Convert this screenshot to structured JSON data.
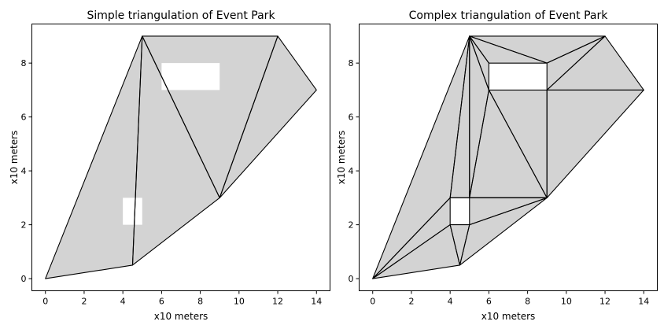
{
  "chart_data": [
    {
      "type": "triangulation",
      "title": "Simple triangulation of Event Park",
      "xlabel": "x10 meters",
      "ylabel": "x10 meters",
      "xlim": [
        -0.7,
        14.7
      ],
      "ylim": [
        -0.45,
        9.45
      ],
      "xticks": [
        0,
        2,
        4,
        6,
        8,
        10,
        12,
        14
      ],
      "yticks": [
        0,
        2,
        4,
        6,
        8
      ],
      "fill_color": "#d3d3d3",
      "edge_color": "#000000",
      "hole_color": "#ffffff",
      "points": [
        [
          0,
          0
        ],
        [
          4.5,
          0.5
        ],
        [
          9,
          3
        ],
        [
          14,
          7
        ],
        [
          12,
          9
        ],
        [
          5,
          9
        ]
      ],
      "triangles": [
        [
          0,
          1,
          5
        ],
        [
          1,
          2,
          5
        ],
        [
          2,
          4,
          5
        ],
        [
          2,
          3,
          4
        ]
      ],
      "holes": [
        [
          [
            4,
            2
          ],
          [
            5,
            2
          ],
          [
            5,
            3
          ],
          [
            4,
            3
          ]
        ],
        [
          [
            6,
            7
          ],
          [
            9,
            7
          ],
          [
            9,
            8
          ],
          [
            6,
            8
          ]
        ]
      ]
    },
    {
      "type": "triangulation",
      "title": "Complex triangulation of Event Park",
      "xlabel": "x10 meters",
      "ylabel": "x10 meters",
      "xlim": [
        -0.7,
        14.7
      ],
      "ylim": [
        -0.45,
        9.45
      ],
      "xticks": [
        0,
        2,
        4,
        6,
        8,
        10,
        12,
        14
      ],
      "yticks": [
        0,
        2,
        4,
        6,
        8
      ],
      "fill_color": "#d3d3d3",
      "edge_color": "#000000",
      "hole_color": "#ffffff",
      "points": [
        [
          0,
          0
        ],
        [
          4.5,
          0.5
        ],
        [
          9,
          3
        ],
        [
          14,
          7
        ],
        [
          12,
          9
        ],
        [
          5,
          9
        ],
        [
          4,
          2
        ],
        [
          5,
          2
        ],
        [
          5,
          3
        ],
        [
          4,
          3
        ],
        [
          6,
          7
        ],
        [
          9,
          7
        ],
        [
          9,
          8
        ],
        [
          6,
          8
        ]
      ],
      "triangles": [
        [
          0,
          1,
          6
        ],
        [
          1,
          6,
          7
        ],
        [
          1,
          7,
          2
        ],
        [
          7,
          2,
          8
        ],
        [
          0,
          6,
          9
        ],
        [
          0,
          9,
          5
        ],
        [
          9,
          5,
          8
        ],
        [
          8,
          5,
          10
        ],
        [
          5,
          10,
          13
        ],
        [
          5,
          13,
          12
        ],
        [
          5,
          12,
          4
        ],
        [
          12,
          4,
          11
        ],
        [
          11,
          4,
          3
        ],
        [
          11,
          3,
          2
        ],
        [
          10,
          11,
          2
        ],
        [
          10,
          2,
          8
        ],
        [
          9,
          8,
          2
        ]
      ],
      "holes": [
        [
          [
            4,
            2
          ],
          [
            5,
            2
          ],
          [
            5,
            3
          ],
          [
            4,
            3
          ]
        ],
        [
          [
            6,
            7
          ],
          [
            9,
            7
          ],
          [
            9,
            8
          ],
          [
            6,
            8
          ]
        ]
      ]
    }
  ]
}
